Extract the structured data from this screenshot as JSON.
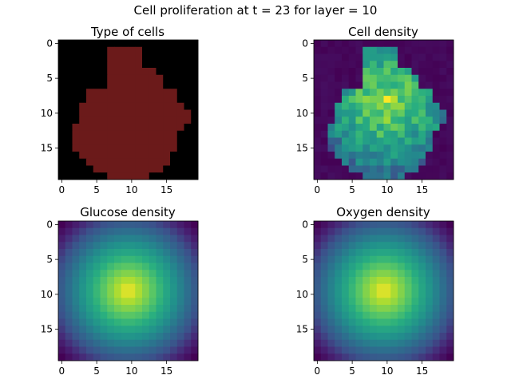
{
  "figure": {
    "suptitle": "Cell proliferation at t = 23 for layer = 10"
  },
  "chart_data": [
    {
      "type": "heatmap",
      "title": "Type of cells",
      "rows": 20,
      "cols": 20,
      "xticks": [
        0,
        5,
        10,
        15
      ],
      "yticks": [
        0,
        5,
        10,
        15
      ],
      "legend": {
        "0": "#000000",
        "1": "#6b1a1a",
        "2": "#0a64c8"
      },
      "grid": [
        "00000000000000000000",
        "00000001111100000000",
        "00000001111100000000",
        "00000001111100000000",
        "00000001111111000000",
        "00000001111111100000",
        "00000001111111100000",
        "00001111111111111000",
        "00001111111111111000",
        "00011111111111111100",
        "00011111111111111110",
        "00011111111111111110",
        "00111111111111111100",
        "00111111111111111000",
        "00111111111111111000",
        "00111111111111111000",
        "00011111111111110000",
        "00001111111111110000",
        "00000111111111100000",
        "00000001111110000000"
      ]
    },
    {
      "type": "heatmap",
      "title": "Cell density",
      "rows": 20,
      "cols": 20,
      "xticks": [
        0,
        5,
        10,
        15
      ],
      "yticks": [
        0,
        5,
        10,
        15
      ],
      "colormap": "viridis",
      "pattern": "noisy-blob",
      "center": [
        8.5,
        10
      ],
      "peak": [
        8,
        10
      ]
    },
    {
      "type": "heatmap",
      "title": "Glucose density",
      "rows": 20,
      "cols": 20,
      "xticks": [
        0,
        5,
        10,
        15
      ],
      "yticks": [
        0,
        5,
        10,
        15
      ],
      "colormap": "viridis",
      "pattern": "radial-gradient",
      "center": [
        9.5,
        9.5
      ]
    },
    {
      "type": "heatmap",
      "title": "Oxygen density",
      "rows": 20,
      "cols": 20,
      "xticks": [
        0,
        5,
        10,
        15
      ],
      "yticks": [
        0,
        5,
        10,
        15
      ],
      "colormap": "viridis",
      "pattern": "radial-gradient",
      "center": [
        9.5,
        9.5
      ]
    }
  ]
}
